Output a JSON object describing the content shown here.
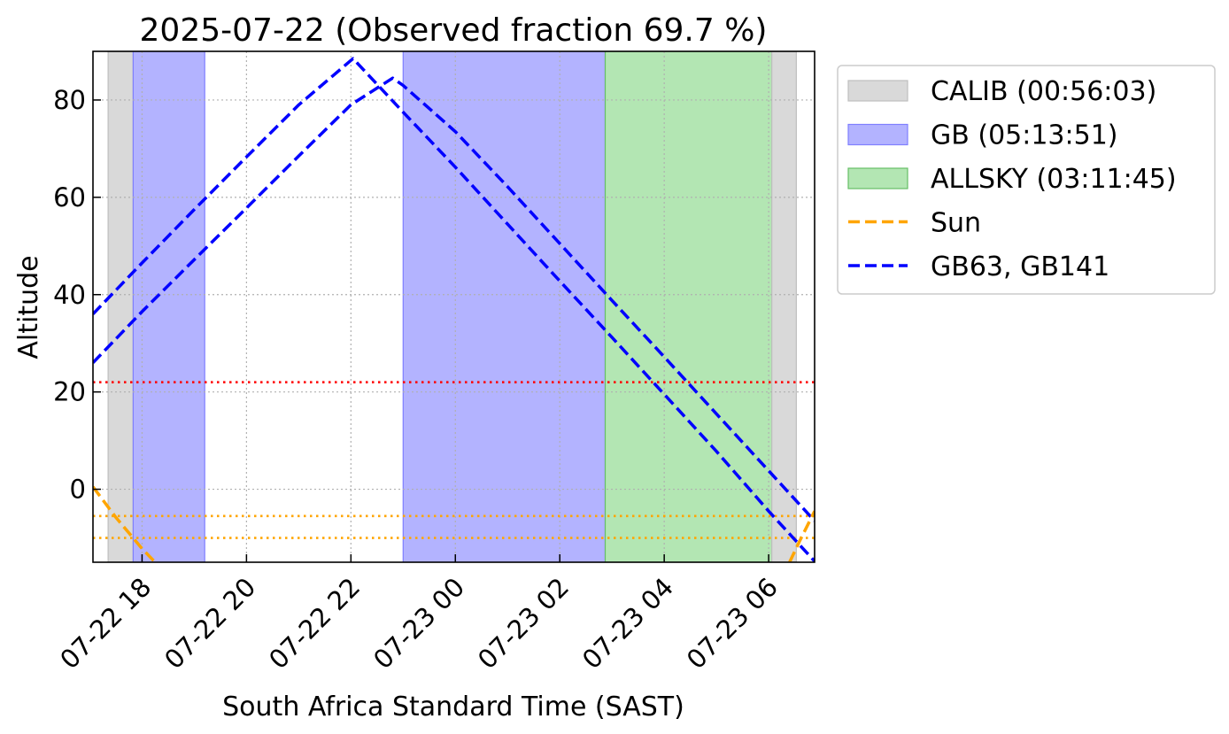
{
  "colors": {
    "calib_fill": "#d9d9d9",
    "calib_edge": "#bfbfbf",
    "gb_fill": "#b3b3ff",
    "gb_edge": "#7f7fff",
    "allsky_fill": "#b3e6b3",
    "allsky_edge": "#66bf66",
    "sun": "#ffa500",
    "target": "#0000ff",
    "limit": "#ff0000",
    "grid": "#b0b0b0"
  },
  "chart_data": {
    "type": "line",
    "title": "2025-07-22 (Observed fraction 69.7 %)",
    "xlabel": "South Africa Standard Time (SAST)",
    "ylabel": "Altitude",
    "x_unit": "hours since 2025-07-22 00:00 SAST",
    "xlim": [
      17.06,
      30.88
    ],
    "ylim": [
      -15,
      90
    ],
    "grid": true,
    "legend_position": "outside-right",
    "x_ticks": [
      {
        "x": 18,
        "label": "07-22 18"
      },
      {
        "x": 20,
        "label": "07-22 20"
      },
      {
        "x": 22,
        "label": "07-22 22"
      },
      {
        "x": 24,
        "label": "07-23 00"
      },
      {
        "x": 26,
        "label": "07-23 02"
      },
      {
        "x": 28,
        "label": "07-23 04"
      },
      {
        "x": 30,
        "label": "07-23 06"
      }
    ],
    "y_ticks": [
      0,
      20,
      40,
      60,
      80
    ],
    "spans": [
      {
        "kind": "calib",
        "x": [
          17.35,
          17.83
        ]
      },
      {
        "kind": "gb",
        "x": [
          17.83,
          19.2
        ]
      },
      {
        "kind": "gb",
        "x": [
          23.0,
          26.87
        ]
      },
      {
        "kind": "allsky",
        "x": [
          26.87,
          30.06
        ]
      },
      {
        "kind": "calib",
        "x": [
          30.06,
          30.53
        ]
      }
    ],
    "legend": [
      {
        "kind": "calib",
        "label": "CALIB (00:56:03)"
      },
      {
        "kind": "gb",
        "label": "GB (05:13:51)"
      },
      {
        "kind": "allsky",
        "label": "ALLSKY (03:11:45)"
      },
      {
        "kind": "sun",
        "label": "Sun"
      },
      {
        "kind": "target",
        "label": "GB63, GB141"
      }
    ],
    "hlines": [
      {
        "y": 22,
        "color_key": "limit"
      },
      {
        "y": -5.5,
        "color_key": "sun"
      },
      {
        "y": -10,
        "color_key": "sun"
      }
    ],
    "series": [
      {
        "kind": "target",
        "x": [
          17.06,
          18,
          19,
          20,
          21,
          22.04,
          23,
          24,
          25,
          26,
          27,
          28,
          29,
          30,
          30.88
        ],
        "y": [
          36,
          46.5,
          57.5,
          68.3,
          79,
          88.5,
          77.5,
          66.2,
          54.5,
          42.8,
          31.2,
          19.5,
          7.8,
          -4.5,
          -14.8
        ]
      },
      {
        "kind": "target",
        "x": [
          17.06,
          18,
          19,
          20,
          21,
          22,
          22.8,
          23,
          24,
          25,
          26,
          27,
          28,
          29,
          30,
          30.88
        ],
        "y": [
          26,
          36.5,
          47.2,
          57.8,
          68.5,
          79,
          84.5,
          83,
          73.5,
          62.2,
          50.5,
          38.8,
          27.2,
          15.5,
          3.8,
          -6.5
        ]
      },
      {
        "kind": "sun",
        "x": [
          17.06,
          17.5,
          18,
          18.25
        ],
        "y": [
          0.5,
          -5.8,
          -12.2,
          -15
        ]
      },
      {
        "kind": "sun",
        "x": [
          30.4,
          30.6,
          30.88
        ],
        "y": [
          -15,
          -10.5,
          -4.5
        ]
      }
    ]
  }
}
